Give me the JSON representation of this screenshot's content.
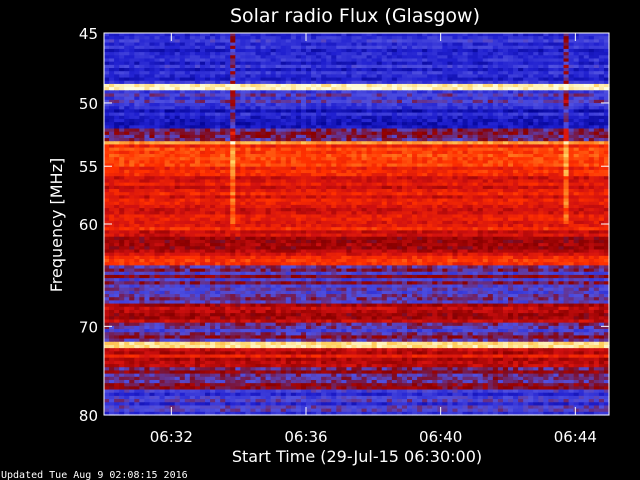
{
  "chart_data": {
    "type": "heatmap",
    "title": "Solar radio Flux (Glasgow)",
    "xlabel": "Start Time (29-Jul-15 06:30:00)",
    "ylabel": "Frequency [MHz]",
    "x_range_minutes": [
      "06:30",
      "06:45"
    ],
    "x_ticks": [
      "06:32",
      "06:36",
      "06:40",
      "06:44"
    ],
    "y_range": [
      45,
      80
    ],
    "y_ticks": [
      45,
      50,
      55,
      60,
      70,
      80
    ],
    "y_scale": "log",
    "colormap": [
      "#00008b",
      "#2020d0",
      "#5050e0",
      "#8a0000",
      "#d01010",
      "#ff3000",
      "#ff8020",
      "#ffd060",
      "#ffffe0"
    ],
    "bands": [
      {
        "from": 45.0,
        "to": 45.5,
        "level": 0.2
      },
      {
        "from": 45.5,
        "to": 48.5,
        "level": 0.15
      },
      {
        "from": 48.5,
        "to": 49.0,
        "level": 0.98
      },
      {
        "from": 49.0,
        "to": 50.5,
        "level": 0.22
      },
      {
        "from": 50.5,
        "to": 52.0,
        "level": 0.12
      },
      {
        "from": 52.0,
        "to": 53.0,
        "level": 0.35
      },
      {
        "from": 53.0,
        "to": 53.3,
        "level": 0.8
      },
      {
        "from": 53.3,
        "to": 55.5,
        "level": 0.62
      },
      {
        "from": 55.5,
        "to": 60.5,
        "level": 0.55
      },
      {
        "from": 60.5,
        "to": 63.0,
        "level": 0.47
      },
      {
        "from": 63.0,
        "to": 64.0,
        "level": 0.58
      },
      {
        "from": 64.0,
        "to": 67.5,
        "level": 0.3
      },
      {
        "from": 67.5,
        "to": 69.5,
        "level": 0.46
      },
      {
        "from": 69.5,
        "to": 71.5,
        "level": 0.28
      },
      {
        "from": 71.5,
        "to": 72.3,
        "level": 0.95
      },
      {
        "from": 72.3,
        "to": 74.5,
        "level": 0.5
      },
      {
        "from": 74.5,
        "to": 77.0,
        "level": 0.33
      },
      {
        "from": 77.0,
        "to": 80.0,
        "level": 0.2
      }
    ],
    "bursts_minutes": [
      3.8,
      13.7
    ],
    "grid": false
  },
  "footer": "Updated Tue Aug  9 02:08:15 2016"
}
